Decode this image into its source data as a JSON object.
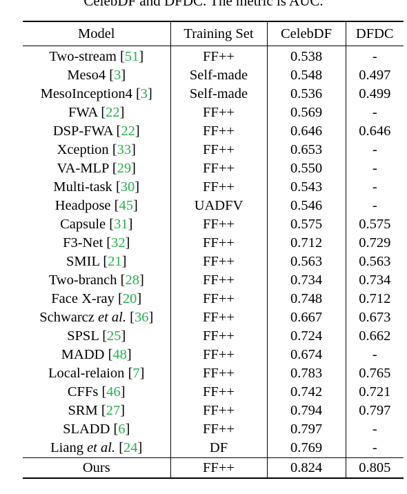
{
  "caption": "CelebDF and DFDC. The metric is AUC.",
  "table": {
    "headers": [
      "Model",
      "Training Set",
      "CelebDF",
      "DFDC"
    ],
    "rows": [
      {
        "name": "Two-stream ",
        "etal": "",
        "ref": "51",
        "train": "FF++",
        "celebdf": "0.538",
        "dfdc": "-"
      },
      {
        "name": "Meso4 ",
        "etal": "",
        "ref": "3",
        "train": "Self-made",
        "celebdf": "0.548",
        "dfdc": "0.497"
      },
      {
        "name": "MesoInception4 ",
        "etal": "",
        "ref": "3",
        "train": "Self-made",
        "celebdf": "0.536",
        "dfdc": "0.499"
      },
      {
        "name": "FWA ",
        "etal": "",
        "ref": "22",
        "train": "FF++",
        "celebdf": "0.569",
        "dfdc": "-"
      },
      {
        "name": "DSP-FWA ",
        "etal": "",
        "ref": "22",
        "train": "FF++",
        "celebdf": "0.646",
        "dfdc": "0.646"
      },
      {
        "name": "Xception ",
        "etal": "",
        "ref": "33",
        "train": "FF++",
        "celebdf": "0.653",
        "dfdc": "-"
      },
      {
        "name": "VA-MLP ",
        "etal": "",
        "ref": "29",
        "train": "FF++",
        "celebdf": "0.550",
        "dfdc": "-"
      },
      {
        "name": "Multi-task ",
        "etal": "",
        "ref": "30",
        "train": "FF++",
        "celebdf": "0.543",
        "dfdc": "-"
      },
      {
        "name": "Headpose ",
        "etal": "",
        "ref": "45",
        "train": "UADFV",
        "celebdf": "0.546",
        "dfdc": "-"
      },
      {
        "name": "Capsule ",
        "etal": "",
        "ref": "31",
        "train": "FF++",
        "celebdf": "0.575",
        "dfdc": "0.575"
      },
      {
        "name": "F3-Net ",
        "etal": "",
        "ref": "32",
        "train": "FF++",
        "celebdf": "0.712",
        "dfdc": "0.729"
      },
      {
        "name": "SMIL ",
        "etal": "",
        "ref": "21",
        "train": "FF++",
        "celebdf": "0.563",
        "dfdc": "0.563"
      },
      {
        "name": "Two-branch ",
        "etal": "",
        "ref": "28",
        "train": "FF++",
        "celebdf": "0.734",
        "dfdc": "0.734"
      },
      {
        "name": "Face X-ray ",
        "etal": "",
        "ref": "20",
        "train": "FF++",
        "celebdf": "0.748",
        "dfdc": "0.712"
      },
      {
        "name": "Schwarcz ",
        "etal": "et al.",
        "ref": "36",
        "train": "FF++",
        "celebdf": "0.667",
        "dfdc": "0.673"
      },
      {
        "name": "SPSL ",
        "etal": "",
        "ref": "25",
        "train": "FF++",
        "celebdf": "0.724",
        "dfdc": "0.662"
      },
      {
        "name": "MADD ",
        "etal": "",
        "ref": "48",
        "train": "FF++",
        "celebdf": "0.674",
        "dfdc": "-"
      },
      {
        "name": "Local-relaion ",
        "etal": "",
        "ref": "7",
        "train": "FF++",
        "celebdf": "0.783",
        "dfdc": "0.765"
      },
      {
        "name": "CFFs ",
        "etal": "",
        "ref": "46",
        "train": "FF++",
        "celebdf": "0.742",
        "dfdc": "0.721"
      },
      {
        "name": "SRM ",
        "etal": "",
        "ref": "27",
        "train": "FF++",
        "celebdf": "0.794",
        "dfdc": "0.797"
      },
      {
        "name": "SLADD ",
        "etal": "",
        "ref": "6",
        "train": "FF++",
        "celebdf": "0.797",
        "dfdc": "-"
      },
      {
        "name": "Liang ",
        "etal": "et al.",
        "ref": "24",
        "train": "DF",
        "celebdf": "0.769",
        "dfdc": "-"
      }
    ],
    "ours": {
      "name": "Ours",
      "train": "FF++",
      "celebdf": "0.824",
      "dfdc": "0.805"
    }
  },
  "colors": {
    "citation": "#22b14c",
    "text": "#000000"
  }
}
